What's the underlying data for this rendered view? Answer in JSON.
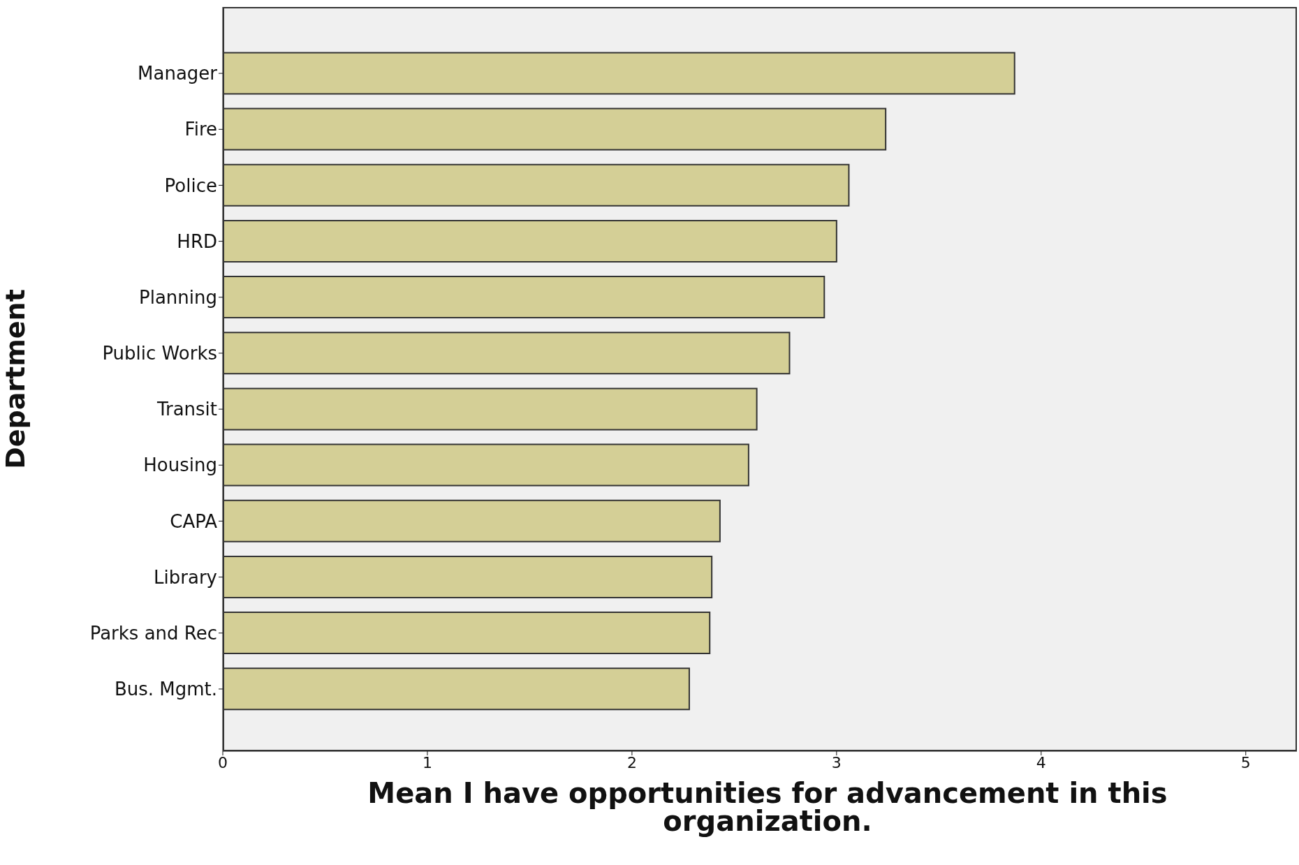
{
  "chart_data": {
    "type": "bar",
    "orientation": "horizontal",
    "xlabel": "Mean I have opportunities for advancement in this organization.",
    "ylabel": "Department",
    "categories": [
      "Manager",
      "Fire",
      "Police",
      "HRD",
      "Planning",
      "Public Works",
      "Transit",
      "Housing",
      "CAPA",
      "Library",
      "Parks and Rec",
      "Bus. Mgmt."
    ],
    "values": [
      3.87,
      3.24,
      3.06,
      3.0,
      2.94,
      2.77,
      2.61,
      2.57,
      2.43,
      2.39,
      2.38,
      2.28
    ],
    "color": "#d4cf96",
    "xlim": [
      0,
      5.25
    ],
    "xticks": [
      0,
      1,
      2,
      3,
      4,
      5
    ],
    "grid": false
  }
}
